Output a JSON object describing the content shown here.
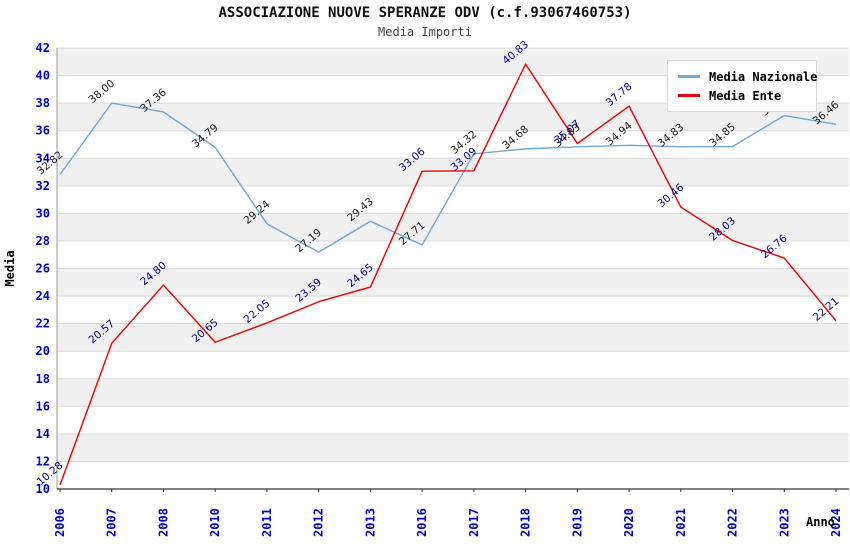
{
  "header": {
    "title": "ASSOCIAZIONE NUOVE SPERANZE ODV (c.f.93067460753)",
    "subtitle": "Media Importi"
  },
  "chart_data": {
    "type": "line",
    "title": "ASSOCIAZIONE NUOVE SPERANZE ODV (c.f.93067460753)",
    "subtitle": "Media Importi",
    "xlabel": "Anno",
    "ylabel": "Media",
    "categories": [
      "2006",
      "2007",
      "2008",
      "2010",
      "2011",
      "2012",
      "2013",
      "2016",
      "2017",
      "2018",
      "2019",
      "2020",
      "2021",
      "2022",
      "2023",
      "2024"
    ],
    "series": [
      {
        "name": "Media Nazionale",
        "color": "#6FA8DC",
        "label_color": "#1a1a1a",
        "values": [
          32.82,
          38.0,
          37.36,
          34.79,
          29.24,
          27.19,
          29.43,
          27.71,
          34.32,
          34.68,
          34.83,
          34.94,
          34.83,
          34.85,
          37.1,
          36.46
        ]
      },
      {
        "name": "Media Ente",
        "color": "#EE0000",
        "label_color": "#00008B",
        "values": [
          10.28,
          20.57,
          24.8,
          20.65,
          22.05,
          23.59,
          24.65,
          33.06,
          33.09,
          40.83,
          35.07,
          37.78,
          30.46,
          28.03,
          26.76,
          22.21
        ]
      }
    ],
    "ylim": [
      10,
      42
    ],
    "yticks": [
      10,
      12,
      14,
      16,
      18,
      20,
      22,
      24,
      26,
      28,
      30,
      32,
      34,
      36,
      38,
      40,
      42
    ],
    "tick_label_color": "#0000CC",
    "axis_title_color": "#000000",
    "grid": "horizontal-bands",
    "band_colors": [
      "#F0F0F0",
      "#FFFFFF"
    ],
    "gridline_color": "#DBDBDB",
    "legend_position": "top-right"
  }
}
